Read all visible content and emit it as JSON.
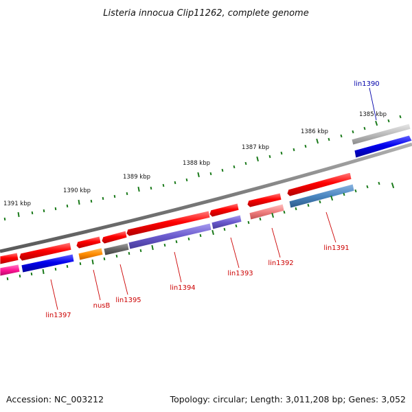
{
  "title": "Listeria innocua Clip11262, complete genome",
  "footer": {
    "accession": "Accession: NC_003212",
    "summary": "Topology: circular; Length: 3,011,208 bp; Genes: 3,052"
  },
  "colors": {
    "backbone": "#808080",
    "tick": "#1a7a1a",
    "label_forward": "#cc0000",
    "label_highlight": "#0000aa"
  },
  "kbp_ticks": [
    {
      "id": "1385",
      "label": "1385 kbp"
    },
    {
      "id": "1386",
      "label": "1386 kbp"
    },
    {
      "id": "1387",
      "label": "1387 kbp"
    },
    {
      "id": "1388",
      "label": "1388 kbp"
    },
    {
      "id": "1389",
      "label": "1389 kbp"
    },
    {
      "id": "1390",
      "label": "1390 kbp"
    },
    {
      "id": "1391",
      "label": "1391 kbp"
    }
  ],
  "gene_labels": [
    {
      "id": "lin1390",
      "label": "lin1390",
      "color": "#0000aa"
    },
    {
      "id": "lin1391",
      "label": "lin1391",
      "color": "#cc0000"
    },
    {
      "id": "lin1392",
      "label": "lin1392",
      "color": "#cc0000"
    },
    {
      "id": "lin1393",
      "label": "lin1393",
      "color": "#cc0000"
    },
    {
      "id": "lin1394",
      "label": "lin1394",
      "color": "#cc0000"
    },
    {
      "id": "lin1395",
      "label": "lin1395",
      "color": "#cc0000"
    },
    {
      "id": "nusB",
      "label": "nusB",
      "color": "#cc0000"
    },
    {
      "id": "lin1397",
      "label": "lin1397",
      "color": "#cc0000"
    }
  ]
}
